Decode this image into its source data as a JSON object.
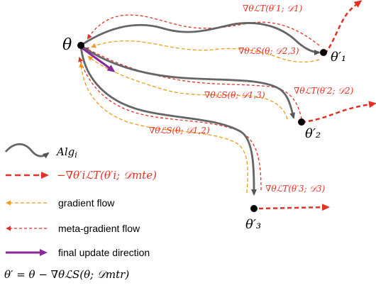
{
  "nodes": {
    "theta": "θ",
    "theta1": "θ′₁",
    "theta2": "θ′₂",
    "theta3": "θ′₃"
  },
  "labels": {
    "meta_grad_1": "∇θℒT(θ′1; 𝒟1)",
    "grad_s_23": "∇θℒS(θ; 𝒟2,3)",
    "meta_grad_2": "∇θℒT(θ′2; 𝒟2)",
    "grad_s_13": "∇θℒS(θ; 𝒟1,3)",
    "grad_s_12": "∇θℒS(θ; 𝒟1,2)",
    "meta_grad_3": "∇θℒT(θ′3; 𝒟3)"
  },
  "legend": {
    "alg": "Alg",
    "alg_sub": "i",
    "meta_loss": "−∇θ′iℒT(θ′i; 𝒟mte)",
    "gradient_flow": "gradient flow",
    "meta_gradient_flow": "meta-gradient flow",
    "final_update": "final update direction",
    "update_rule": "θ′ = θ − ∇θℒS(θ; 𝒟mtr)"
  },
  "colors": {
    "path": "#666666",
    "red": "#e23226",
    "orange": "#f29a1a",
    "purple": "#8a2a9a"
  }
}
